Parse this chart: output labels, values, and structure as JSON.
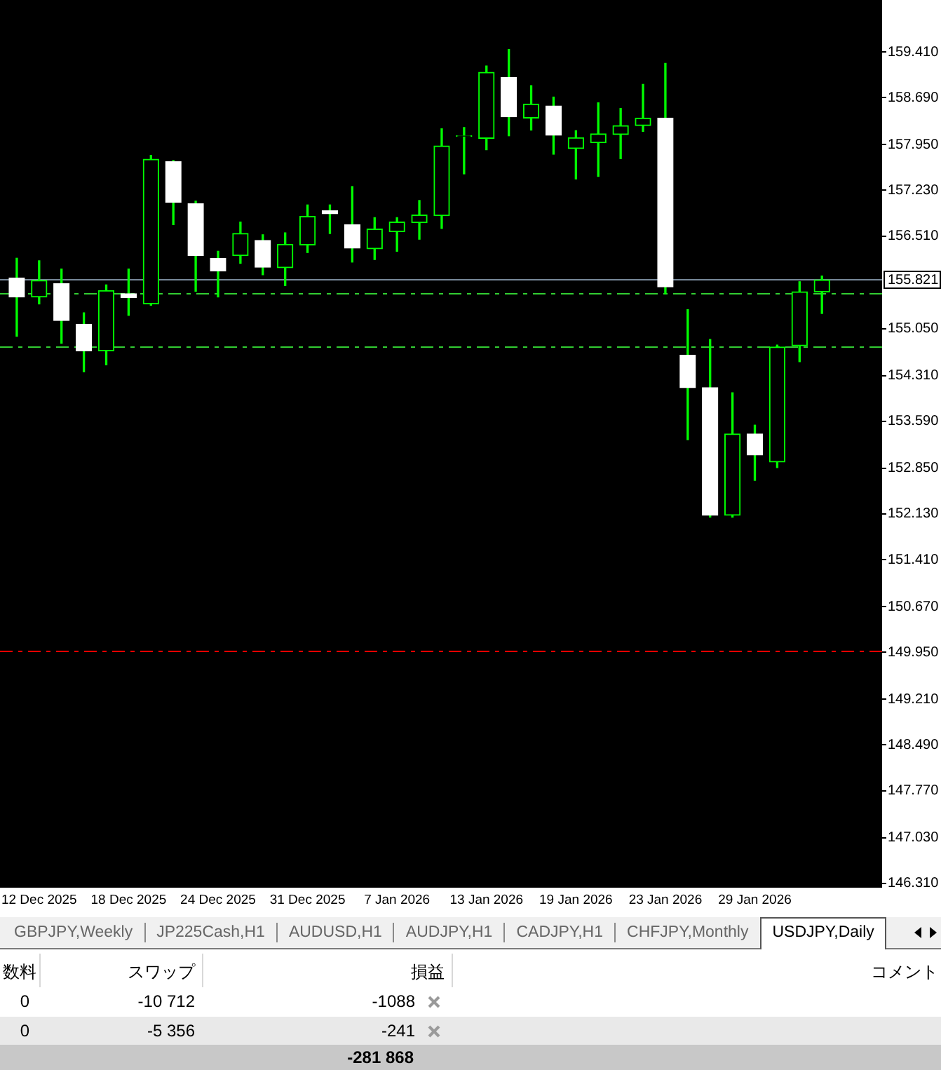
{
  "chart_data": [
    {
      "type": "candlestick",
      "categories": [
        null,
        "12 Dec 2025",
        null,
        null,
        null,
        "18 Dec 2025",
        null,
        null,
        null,
        "24 Dec 2025",
        null,
        null,
        null,
        "31 Dec 2025",
        null,
        null,
        null,
        "7 Jan 2026",
        null,
        null,
        null,
        "13 Jan 2026",
        null,
        null,
        null,
        "19 Jan 2026",
        null,
        null,
        null,
        "23 Jan 2026",
        null,
        null,
        null,
        "29 Jan 2026",
        null,
        null,
        null
      ],
      "ohlc": [
        [
          155.85,
          156.16,
          154.93,
          155.55
        ],
        [
          155.55,
          156.12,
          155.44,
          155.81
        ],
        [
          155.76,
          155.99,
          154.82,
          155.18
        ],
        [
          155.12,
          155.3,
          154.37,
          154.7
        ],
        [
          154.7,
          155.74,
          154.48,
          155.65
        ],
        [
          155.6,
          155.99,
          155.26,
          155.54
        ],
        [
          155.44,
          157.78,
          155.42,
          157.72
        ],
        [
          157.68,
          157.7,
          156.69,
          157.04
        ],
        [
          157.02,
          157.06,
          155.64,
          156.2
        ],
        [
          156.16,
          156.27,
          155.55,
          155.96
        ],
        [
          156.2,
          156.73,
          156.08,
          156.55
        ],
        [
          156.44,
          156.53,
          155.9,
          156.02
        ],
        [
          156.01,
          156.56,
          155.73,
          156.38
        ],
        [
          156.37,
          157.0,
          156.25,
          156.82
        ],
        [
          156.91,
          157.0,
          156.55,
          156.86
        ],
        [
          156.69,
          157.29,
          156.1,
          156.32
        ],
        [
          156.31,
          156.8,
          156.14,
          156.62
        ],
        [
          156.58,
          156.8,
          156.27,
          156.73
        ],
        [
          156.72,
          157.07,
          156.46,
          156.84
        ],
        [
          156.83,
          158.2,
          156.63,
          157.93
        ],
        [
          158.08,
          158.22,
          157.49,
          158.09
        ],
        [
          158.05,
          159.19,
          157.87,
          159.09
        ],
        [
          159.01,
          159.45,
          158.09,
          158.39
        ],
        [
          158.37,
          158.88,
          158.18,
          158.59
        ],
        [
          158.56,
          158.7,
          157.8,
          158.1
        ],
        [
          157.89,
          158.17,
          157.41,
          158.06
        ],
        [
          157.98,
          158.61,
          157.45,
          158.12
        ],
        [
          158.11,
          158.52,
          157.73,
          158.25
        ],
        [
          158.25,
          158.9,
          158.16,
          158.37
        ],
        [
          158.37,
          159.23,
          155.6,
          155.71
        ],
        [
          154.63,
          155.35,
          153.3,
          154.12
        ],
        [
          154.12,
          154.88,
          152.08,
          152.11
        ],
        [
          152.11,
          154.04,
          152.08,
          153.39
        ],
        [
          153.39,
          153.53,
          152.66,
          153.06
        ],
        [
          152.95,
          154.79,
          152.86,
          154.76
        ],
        [
          154.78,
          155.79,
          154.53,
          155.63
        ],
        [
          155.63,
          155.88,
          155.29,
          155.82
        ]
      ],
      "color": "#00ff00",
      "colors": [
        "#ffffff",
        "#00ff00",
        "#ffffff",
        "#ffffff",
        "#00ff00",
        "#ffffff",
        "#00ff00",
        "#ffffff",
        "#ffffff",
        "#ffffff",
        "#00ff00",
        "#ffffff",
        "#00ff00",
        "#00ff00",
        "#ffffff",
        "#ffffff",
        "#00ff00",
        "#00ff00",
        "#00ff00",
        "#00ff00",
        "#00ff00",
        "#00ff00",
        "#ffffff",
        "#00ff00",
        "#ffffff",
        "#00ff00",
        "#00ff00",
        "#00ff00",
        "#00ff00",
        "#ffffff",
        "#ffffff",
        "#ffffff",
        "#00ff00",
        "#ffffff",
        "#00ff00",
        "#00ff00",
        "#00ff00"
      ],
      "ylim": [
        146.24,
        160.23
      ],
      "yticks": [
        {
          "value": 159.41,
          "label": "159.410"
        },
        {
          "value": 158.69,
          "label": "158.690"
        },
        {
          "value": 157.95,
          "label": "157.950"
        },
        {
          "value": 157.23,
          "label": "157.230"
        },
        {
          "value": 156.51,
          "label": "156.510"
        },
        {
          "value": 155.05,
          "label": "155.050"
        },
        {
          "value": 154.31,
          "label": "154.310"
        },
        {
          "value": 153.59,
          "label": "153.590"
        },
        {
          "value": 152.85,
          "label": "152.850"
        },
        {
          "value": 152.13,
          "label": "152.130"
        },
        {
          "value": 151.41,
          "label": "151.410"
        },
        {
          "value": 150.67,
          "label": "150.670"
        },
        {
          "value": 149.95,
          "label": "149.950"
        },
        {
          "value": 149.21,
          "label": "149.210"
        },
        {
          "value": 148.49,
          "label": "148.490"
        },
        {
          "value": 147.77,
          "label": "147.770"
        },
        {
          "value": 147.03,
          "label": "147.030"
        },
        {
          "value": 146.31,
          "label": "146.310"
        }
      ],
      "ref_lines": [
        {
          "axis": "y",
          "value": 155.821,
          "label": "155.821",
          "color": "#778899",
          "line_style": "solid"
        },
        {
          "axis": "y",
          "value": 155.6,
          "color": "#32cd32",
          "line_style": "dashdot"
        },
        {
          "axis": "y",
          "value": 154.76,
          "color": "#32cd32",
          "line_style": "dashdot"
        },
        {
          "axis": "y",
          "value": 149.97,
          "color": "#ff0000",
          "line_style": "dashdot"
        }
      ]
    },
    {
      "type": "other",
      "annotations": [
        "GBPJPY,Weekly",
        "JP225Cash,H1",
        "AUDUSD,H1",
        "AUDJPY,H1",
        "CADJPY,H1",
        "CHFJPY,Monthly",
        "USDJPY,Daily",
        "数料",
        "スワップ",
        "損益",
        "コメント",
        "0",
        "-10 712",
        "-1088",
        "0",
        "-5 356",
        "-241",
        "-281 868"
      ]
    }
  ]
}
